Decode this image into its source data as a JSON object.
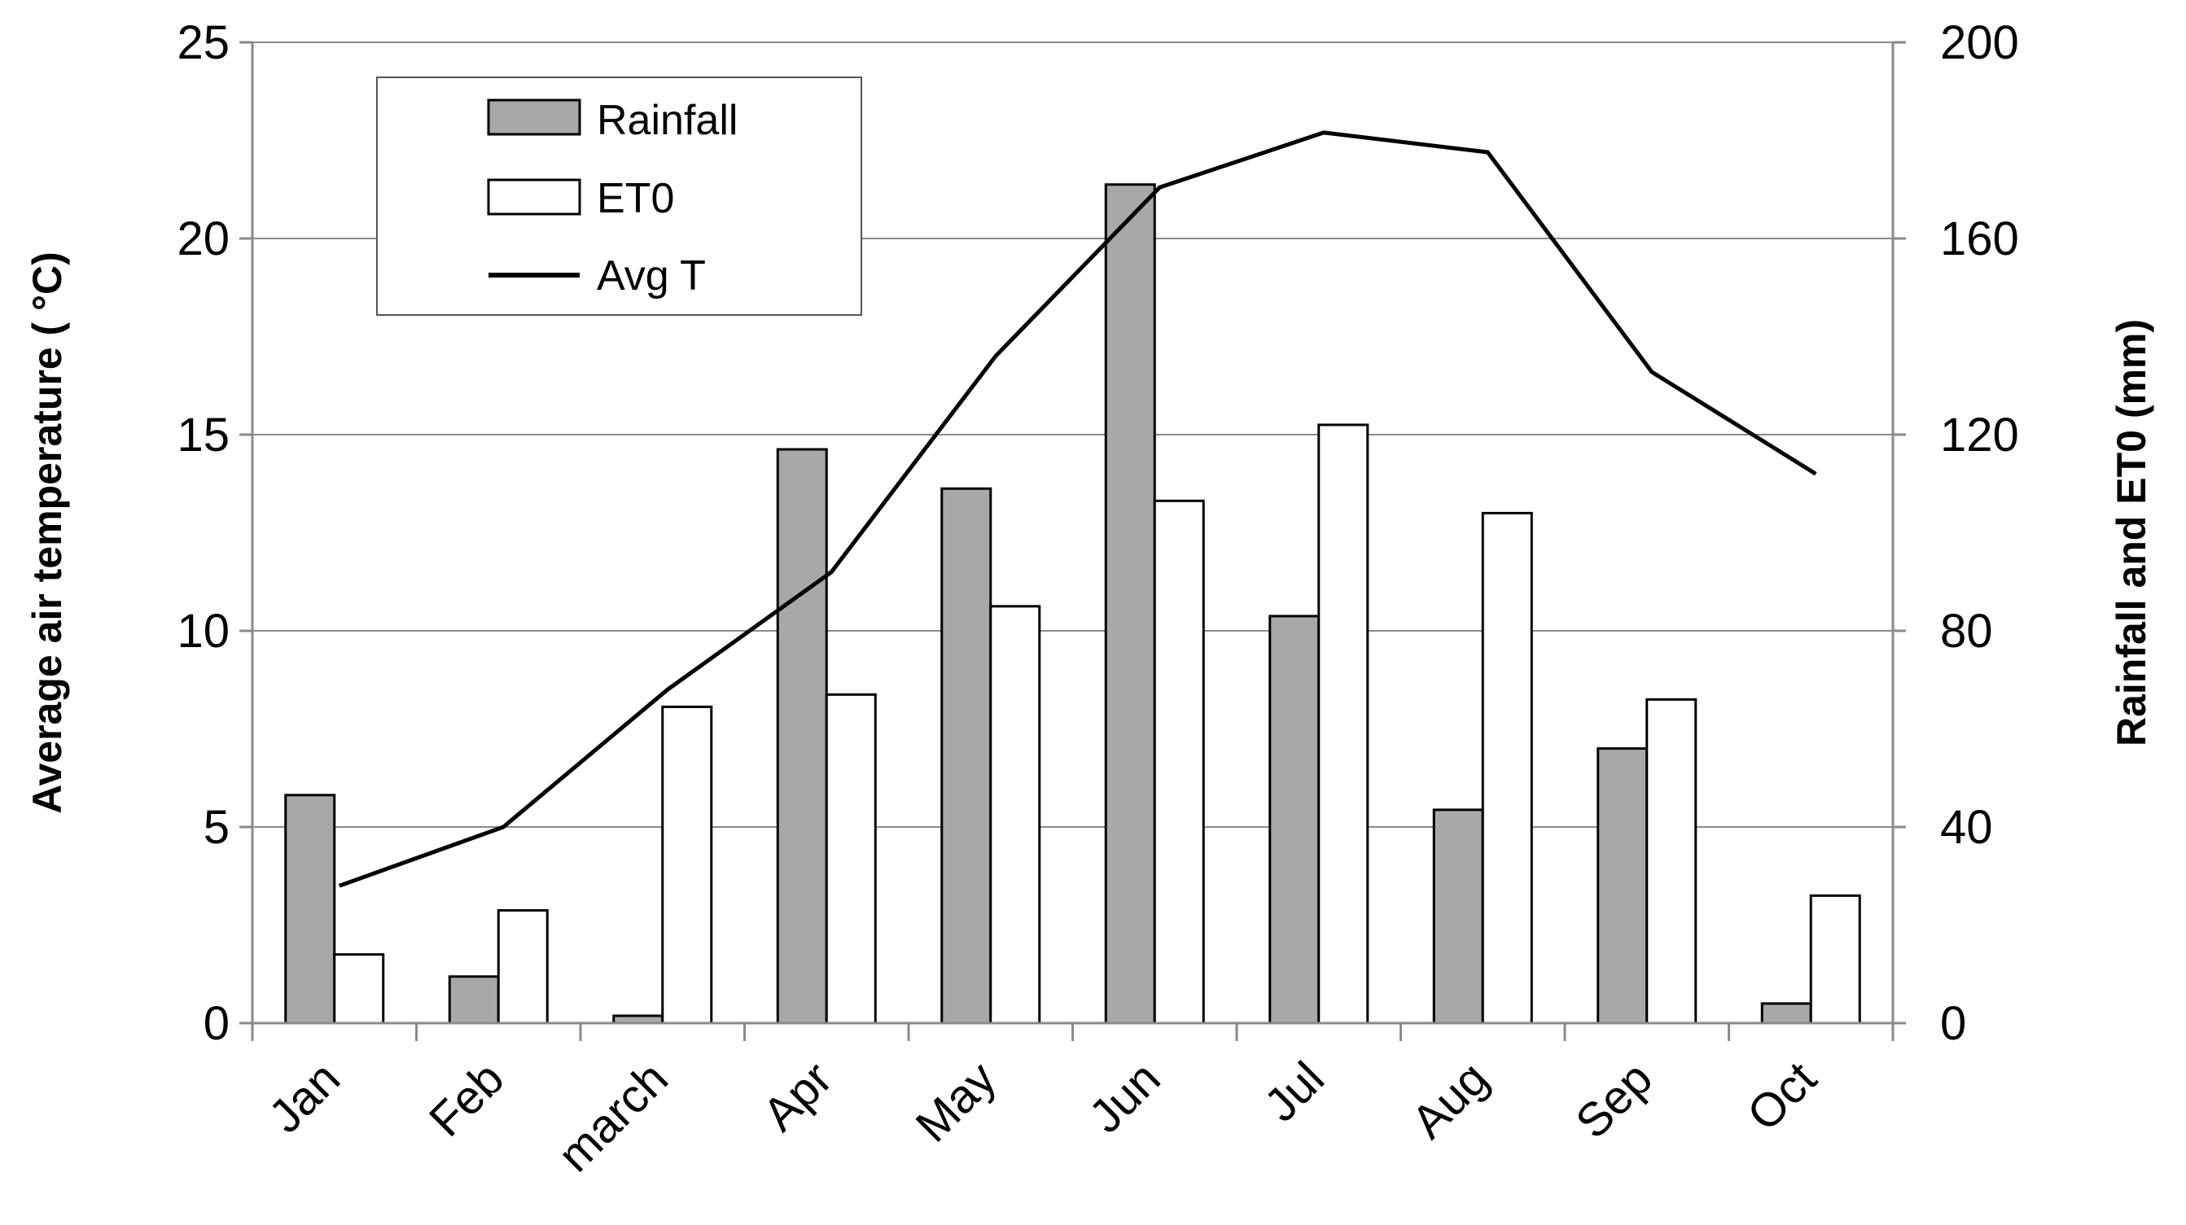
{
  "chart_data": {
    "type": "bar",
    "categories": [
      "Jan",
      "Feb",
      "march",
      "Apr",
      "May",
      "Jun",
      "Jul",
      "Aug",
      "Sep",
      "Oct"
    ],
    "series": [
      {
        "name": "Rainfall",
        "kind": "bar",
        "axis": "right",
        "color": "#a8a8a8",
        "values": [
          46.5,
          9.5,
          1.5,
          117,
          109,
          171,
          83,
          43.5,
          56,
          4
        ]
      },
      {
        "name": "ET0",
        "kind": "bar",
        "axis": "right",
        "color": "#ffffff",
        "values": [
          14,
          23,
          64.5,
          67,
          85,
          106.5,
          122,
          104,
          66,
          26
        ]
      },
      {
        "name": "Avg T",
        "kind": "line",
        "axis": "left",
        "color": "#000000",
        "values": [
          3.5,
          5.0,
          8.5,
          11.5,
          17.0,
          21.3,
          22.7,
          22.2,
          16.6,
          14.0
        ]
      }
    ],
    "y_left": {
      "label": "Average air temperature (  °C)",
      "range": [
        0,
        25
      ],
      "ticks": [
        "0",
        "5",
        "10",
        "15",
        "20",
        "25"
      ]
    },
    "y_right": {
      "label": "Rainfall and ET0 (mm)",
      "range": [
        0,
        200
      ],
      "ticks": [
        "0",
        "40",
        "80",
        "120",
        "160",
        "200"
      ]
    },
    "grid": true,
    "legend": {
      "position": "top-left",
      "entries": [
        {
          "label": "Rainfall",
          "swatch": "bar-gray"
        },
        {
          "label": "ET0",
          "swatch": "bar-white"
        },
        {
          "label": "Avg T",
          "swatch": "line"
        }
      ]
    }
  }
}
